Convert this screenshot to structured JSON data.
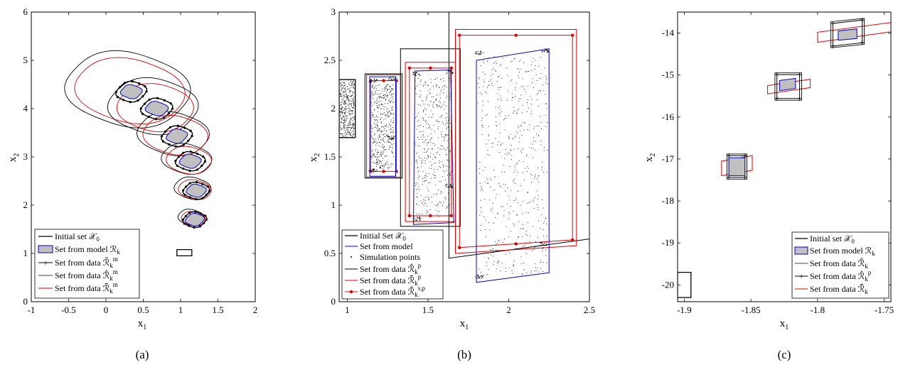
{
  "chart_data": [
    {
      "type": "set-plot",
      "caption": "(a)",
      "xlabel": "x",
      "xlabel_sub": "1",
      "ylabel": "x",
      "ylabel_sub": "2",
      "xlim": [
        -1,
        2
      ],
      "ylim": [
        0,
        6
      ],
      "xticks": [
        -1,
        -0.5,
        0,
        0.5,
        1,
        1.5,
        2
      ],
      "yticks": [
        0,
        1,
        2,
        3,
        4,
        5,
        6
      ],
      "xtick_labels": [
        "-1",
        "-0.5",
        "0",
        "0.5",
        "1",
        "1.5",
        "2"
      ],
      "ytick_labels": [
        "0",
        "1",
        "2",
        "3",
        "4",
        "5",
        "6"
      ],
      "initial_set": [
        [
          0.95,
          0.95
        ],
        [
          1.15,
          0.95
        ],
        [
          1.15,
          1.08
        ],
        [
          0.95,
          1.08
        ]
      ],
      "steps": [
        {
          "center": [
            0.34,
            4.35
          ],
          "model": [
            0.13,
            0.13
          ],
          "data": [
            0.18,
            0.2
          ],
          "outer": [
            0.82,
            0.95
          ],
          "outer2": [
            0.74,
            0.82
          ]
        },
        {
          "center": [
            0.68,
            4.0
          ],
          "model": [
            0.14,
            0.13
          ],
          "data": [
            0.19,
            0.2
          ],
          "outer": [
            0.58,
            0.72
          ],
          "outer2": [
            0.5,
            0.62
          ]
        },
        {
          "center": [
            0.95,
            3.43
          ],
          "model": [
            0.12,
            0.14
          ],
          "data": [
            0.18,
            0.2
          ],
          "outer": [
            0.47,
            0.55
          ],
          "outer2": [
            0.43,
            0.5
          ]
        },
        {
          "center": [
            1.13,
            2.91
          ],
          "model": [
            0.13,
            0.13
          ],
          "data": [
            0.18,
            0.18
          ],
          "outer": [
            0.33,
            0.38
          ],
          "outer2": [
            0.3,
            0.35
          ]
        },
        {
          "center": [
            1.21,
            2.3
          ],
          "model": [
            0.12,
            0.12
          ],
          "data": [
            0.16,
            0.16
          ],
          "outer": [
            0.24,
            0.28
          ],
          "outer2": [
            0.22,
            0.25
          ]
        },
        {
          "center": [
            1.19,
            1.7
          ],
          "model": [
            0.11,
            0.12
          ],
          "data": [
            0.14,
            0.15
          ],
          "outer": [
            0.17,
            0.2
          ],
          "outer2": [
            0.16,
            0.18
          ]
        }
      ],
      "legend": [
        "Initial set X_0",
        "Set from model R_k",
        "Set from data R̃_k^m",
        "Set from data R̂_k^m",
        "Set from data R̄_k^m"
      ]
    },
    {
      "type": "set-plot",
      "caption": "(b)",
      "xlabel": "x",
      "xlabel_sub": "1",
      "ylabel": "x",
      "ylabel_sub": "2",
      "xlim": [
        0.95,
        2.5
      ],
      "ylim": [
        0,
        3
      ],
      "xticks": [
        1,
        1.5,
        2,
        2.5
      ],
      "yticks": [
        0,
        0.5,
        1,
        1.5,
        2,
        2.5,
        3
      ],
      "xtick_labels": [
        "1",
        "1.5",
        "2",
        "2.5"
      ],
      "ytick_labels": [
        "0",
        "0.5",
        "1",
        "1.5",
        "2",
        "2.5",
        "3"
      ],
      "initial_set": [
        [
          0.95,
          1.7
        ],
        [
          1.05,
          1.7
        ],
        [
          1.05,
          2.3
        ],
        [
          0.95,
          2.3
        ]
      ],
      "steps": [
        {
          "model": [
            [
              1.14,
              1.3
            ],
            [
              1.3,
              1.3
            ],
            [
              1.3,
              2.33
            ],
            [
              1.14,
              2.33
            ]
          ],
          "outer": [
            [
              1.11,
              1.28
            ],
            [
              1.34,
              1.28
            ],
            [
              1.34,
              2.36
            ],
            [
              1.11,
              2.36
            ]
          ],
          "red": [
            [
              1.12,
              1.29
            ],
            [
              1.33,
              1.29
            ],
            [
              1.33,
              2.35
            ],
            [
              1.12,
              2.35
            ]
          ]
        },
        {
          "model": [
            [
              1.41,
              0.8
            ],
            [
              1.66,
              0.82
            ],
            [
              1.64,
              2.4
            ],
            [
              1.42,
              2.39
            ]
          ],
          "outer": [
            [
              1.33,
              0.78
            ],
            [
              1.7,
              0.78
            ],
            [
              1.7,
              2.62
            ],
            [
              1.33,
              2.62
            ]
          ],
          "red": [
            [
              1.36,
              0.83
            ],
            [
              1.67,
              0.83
            ],
            [
              1.67,
              2.48
            ],
            [
              1.36,
              2.48
            ]
          ]
        },
        {
          "model": [
            [
              1.8,
              0.2
            ],
            [
              2.25,
              0.3
            ],
            [
              2.25,
              2.62
            ],
            [
              1.8,
              2.5
            ]
          ],
          "outer": [
            [
              1.63,
              0.45
            ],
            [
              2.5,
              0.65
            ],
            [
              2.5,
              3.02
            ],
            [
              1.63,
              3.02
            ]
          ],
          "red": [
            [
              1.67,
              0.5
            ],
            [
              2.42,
              0.58
            ],
            [
              2.42,
              2.82
            ],
            [
              1.67,
              2.82
            ]
          ]
        }
      ],
      "legend": [
        "Initial Set X_0",
        "Set from model",
        "Simulation points",
        "Set from data R̂_k^p",
        "Set from data R̄_k^p",
        "Set from data R̄_k^{s,p}"
      ]
    },
    {
      "type": "set-plot",
      "caption": "(c)",
      "xlabel": "x",
      "xlabel_sub": "1",
      "ylabel": "x",
      "ylabel_sub": "2",
      "xlim": [
        -1.905,
        -1.745
      ],
      "ylim": [
        -20.4,
        -13.5
      ],
      "xticks": [
        -1.9,
        -1.85,
        -1.8,
        -1.75
      ],
      "yticks": [
        -20,
        -19,
        -18,
        -17,
        -16,
        -15,
        -14
      ],
      "xtick_labels": [
        "-1.9",
        "-1.85",
        "-1.8",
        "-1.75"
      ],
      "ytick_labels": [
        "-20",
        "-19",
        "-18",
        "-17",
        "-16",
        "-15",
        "-14"
      ],
      "initial_set": [
        [
          -1.905,
          -20.3
        ],
        [
          -1.895,
          -20.3
        ],
        [
          -1.895,
          -19.7
        ],
        [
          -1.905,
          -19.7
        ]
      ],
      "steps": [
        {
          "center": [
            -1.8595,
            -17.15
          ],
          "model": [
            [
              -1.8665,
              -17.4
            ],
            [
              -1.8545,
              -17.4
            ],
            [
              -1.8545,
              -16.97
            ],
            [
              -1.8665,
              -16.97
            ]
          ],
          "data": [
            [
              -1.868,
              -17.48
            ],
            [
              -1.853,
              -17.48
            ],
            [
              -1.853,
              -16.88
            ],
            [
              -1.868,
              -16.88
            ]
          ],
          "red": [
            [
              -1.872,
              -17.4
            ],
            [
              -1.849,
              -17.27
            ],
            [
              -1.849,
              -16.92
            ],
            [
              -1.872,
              -17.05
            ]
          ]
        },
        {
          "center": [
            -1.8225,
            -15.22
          ],
          "model": [
            [
              -1.8285,
              -15.37
            ],
            [
              -1.8165,
              -15.32
            ],
            [
              -1.8165,
              -15.08
            ],
            [
              -1.8285,
              -15.13
            ]
          ],
          "data": [
            [
              -1.832,
              -15.6
            ],
            [
              -1.812,
              -15.6
            ],
            [
              -1.812,
              -14.95
            ],
            [
              -1.832,
              -14.95
            ]
          ],
          "red": [
            [
              -1.8375,
              -15.45
            ],
            [
              -1.8055,
              -15.3
            ],
            [
              -1.8055,
              -15.1
            ],
            [
              -1.8375,
              -15.25
            ]
          ]
        },
        {
          "center": [
            -1.7775,
            -14.03
          ],
          "model": [
            [
              -1.7845,
              -14.17
            ],
            [
              -1.7705,
              -14.13
            ],
            [
              -1.7705,
              -13.9
            ],
            [
              -1.7845,
              -13.95
            ]
          ],
          "data": [
            [
              -1.79,
              -14.35
            ],
            [
              -1.765,
              -14.27
            ],
            [
              -1.765,
              -13.65
            ],
            [
              -1.79,
              -13.73
            ]
          ],
          "red": [
            [
              -1.8,
              -14.22
            ],
            [
              -1.745,
              -13.97
            ],
            [
              -1.745,
              -13.75
            ],
            [
              -1.8,
              -13.98
            ]
          ]
        }
      ],
      "legend": [
        "Initial set X_0",
        "Set from model R_k",
        "Set from data R̂_k",
        "Set from data R̂_k^p",
        "Set from data R̄_k"
      ]
    }
  ]
}
